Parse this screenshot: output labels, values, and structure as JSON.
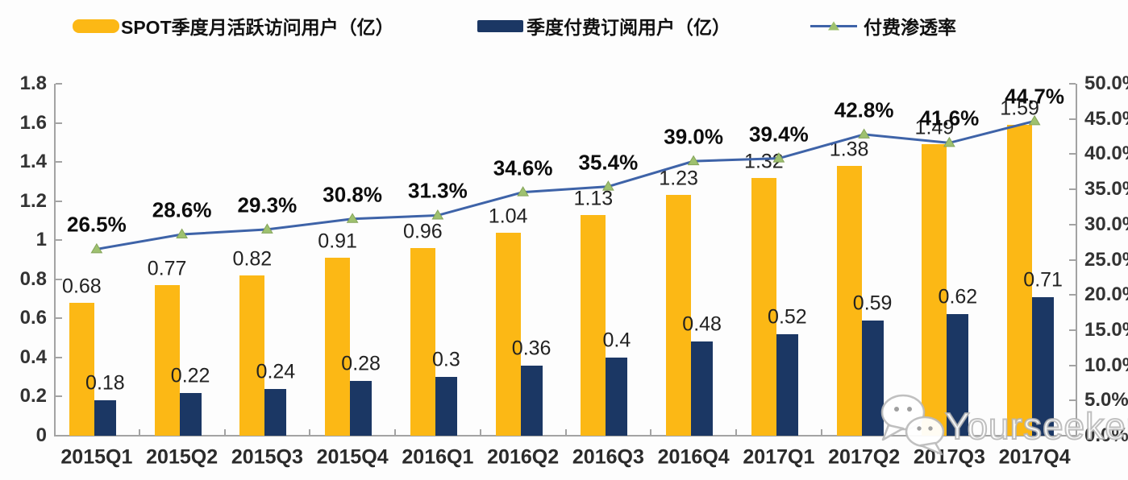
{
  "legend": [
    {
      "label": "SPOT季度月活跃访问用户（亿）",
      "swatch": "bar",
      "color": "#FCB815"
    },
    {
      "label": "季度付费订阅用户（亿）",
      "swatch": "bar",
      "color": "#1B3764"
    },
    {
      "label": "付费渗透率",
      "swatch": "line",
      "line_color": "#3E63A8",
      "marker_color": "#9EC16F"
    }
  ],
  "watermark": {
    "text": "Yourseeker",
    "icon": "chat-bubbles-icon"
  },
  "chart_data": {
    "type": "bar+line",
    "categories": [
      "2015Q1",
      "2015Q2",
      "2015Q3",
      "2015Q4",
      "2016Q1",
      "2016Q2",
      "2016Q3",
      "2016Q4",
      "2017Q1",
      "2017Q2",
      "2017Q3",
      "2017Q4"
    ],
    "series": [
      {
        "name": "SPOT季度月活跃访问用户（亿）",
        "type": "bar",
        "axis": "left",
        "color": "#FCB815",
        "values": [
          0.68,
          0.77,
          0.82,
          0.91,
          0.96,
          1.04,
          1.13,
          1.23,
          1.32,
          1.38,
          1.49,
          1.59
        ],
        "labels": [
          "0.68",
          "0.77",
          "0.82",
          "0.91",
          "0.96",
          "1.04",
          "1.13",
          "1.23",
          "1.32",
          "1.38",
          "1.49",
          "1.59"
        ]
      },
      {
        "name": "季度付费订阅用户（亿）",
        "type": "bar",
        "axis": "left",
        "color": "#1B3764",
        "values": [
          0.18,
          0.22,
          0.24,
          0.28,
          0.3,
          0.36,
          0.4,
          0.48,
          0.52,
          0.59,
          0.62,
          0.71
        ],
        "labels": [
          "0.18",
          "0.22",
          "0.24",
          "0.28",
          "0.3",
          "0.36",
          "0.4",
          "0.48",
          "0.52",
          "0.59",
          "0.62",
          "0.71"
        ]
      },
      {
        "name": "付费渗透率",
        "type": "line",
        "axis": "right",
        "color": "#3E63A8",
        "marker": "triangle",
        "marker_color": "#9EC16F",
        "values": [
          26.5,
          28.6,
          29.3,
          30.8,
          31.3,
          34.6,
          35.4,
          39.0,
          39.4,
          42.8,
          41.6,
          44.7
        ],
        "labels": [
          "26.5%",
          "28.6%",
          "29.3%",
          "30.8%",
          "31.3%",
          "34.6%",
          "35.4%",
          "39.0%",
          "39.4%",
          "42.8%",
          "41.6%",
          "44.7%"
        ]
      }
    ],
    "left_axis": {
      "min": 0,
      "max": 1.8,
      "ticks": [
        "0",
        "0.2",
        "0.4",
        "0.6",
        "0.8",
        "1",
        "1.2",
        "1.4",
        "1.6",
        "1.8"
      ]
    },
    "right_axis": {
      "min": 0,
      "max": 50,
      "ticks": [
        "0.0%",
        "5.0%",
        "10.0%",
        "15.0%",
        "20.0%",
        "25.0%",
        "30.0%",
        "35.0%",
        "40.0%",
        "45.0%",
        "50.0%"
      ]
    },
    "legend_position": "top",
    "grid": false
  }
}
